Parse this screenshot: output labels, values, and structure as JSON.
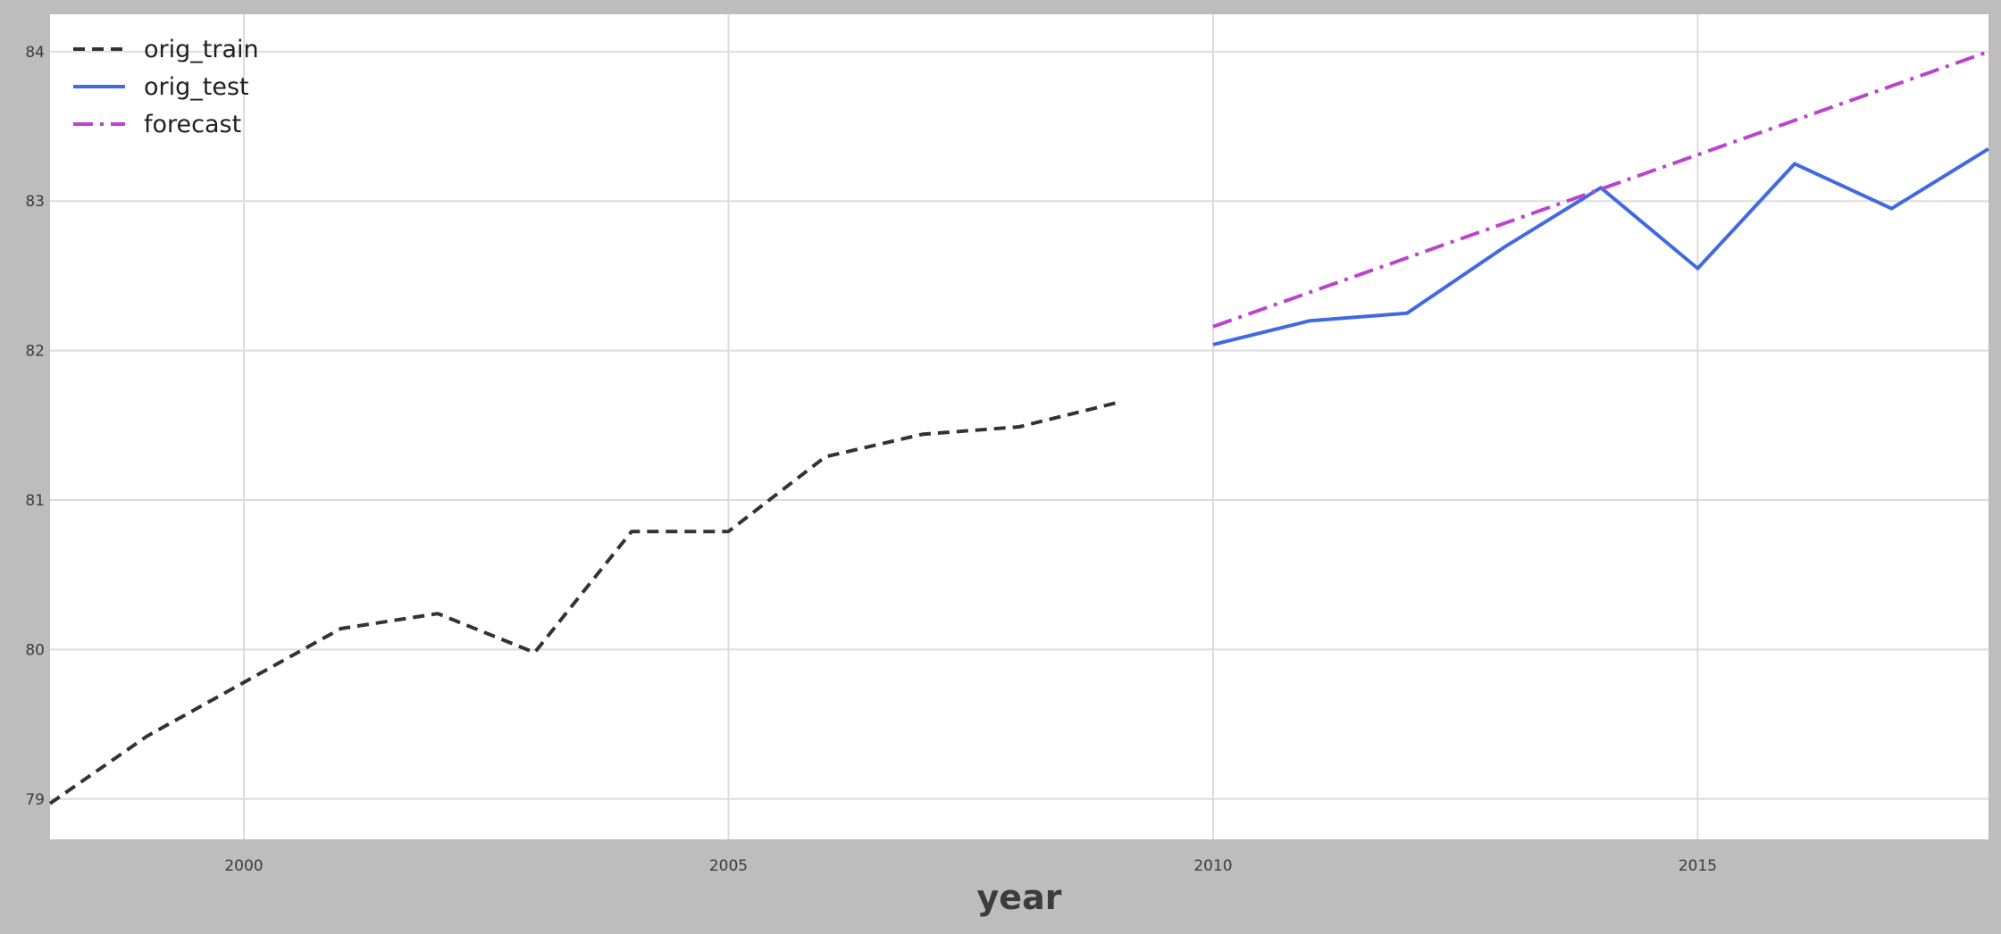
{
  "chart_data": {
    "type": "line",
    "title": "",
    "xlabel": "year",
    "ylabel": "",
    "xlim": [
      1998,
      2018
    ],
    "ylim": [
      78.73,
      84.25
    ],
    "xticks": [
      2000,
      2005,
      2010,
      2015
    ],
    "yticks": [
      79,
      80,
      81,
      82,
      83,
      84
    ],
    "grid": true,
    "legend_position": "top-left",
    "series": [
      {
        "name": "orig_train",
        "color": "#333333",
        "style": "dashed",
        "x": [
          1998,
          1999,
          2000,
          2001,
          2002,
          2003,
          2004,
          2005,
          2006,
          2007,
          2008,
          2009
        ],
        "y": [
          78.97,
          79.42,
          79.78,
          80.14,
          80.24,
          79.98,
          80.79,
          80.79,
          81.29,
          81.44,
          81.49,
          81.65
        ]
      },
      {
        "name": "orig_test",
        "color": "#4169e1",
        "style": "solid",
        "x": [
          2010,
          2011,
          2012,
          2013,
          2014,
          2015,
          2016,
          2017,
          2018
        ],
        "y": [
          82.04,
          82.2,
          82.25,
          82.69,
          83.09,
          82.55,
          83.25,
          82.95,
          83.35
        ]
      },
      {
        "name": "forecast",
        "color": "#bb44cc",
        "style": "dashdot",
        "x": [
          2010,
          2018
        ],
        "y": [
          82.16,
          84.0
        ]
      }
    ]
  }
}
